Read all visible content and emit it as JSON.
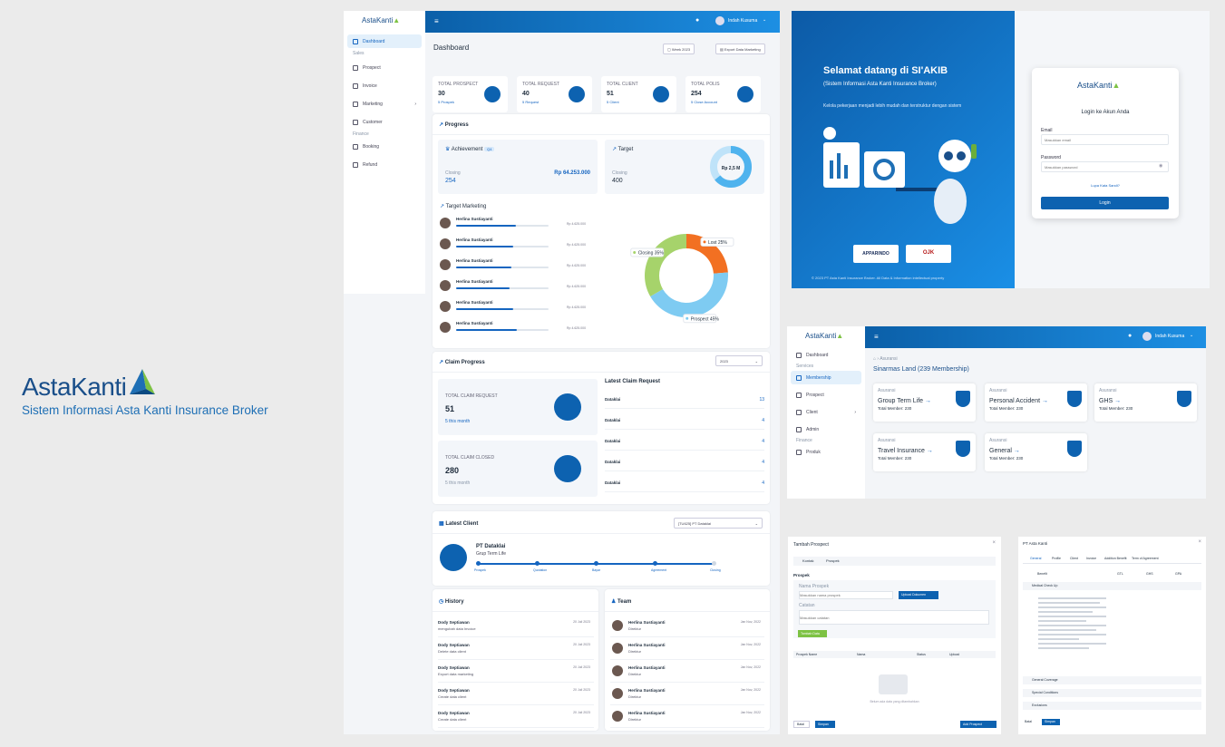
{
  "brand": {
    "name": "AstaKanti",
    "subtitle": "Sistem Informasi Asta Kanti Insurance Broker"
  },
  "dashboard": {
    "logo": "AstaKanti",
    "user": "Indah Kusuma",
    "sidebar": {
      "active": "Dashboard",
      "section1": "Sales",
      "items1": [
        "Prospect",
        "Invoice",
        "Marketing",
        "Customer"
      ],
      "section2": "Finance",
      "items2": [
        "Booking",
        "Refund"
      ]
    },
    "title": "Dashboard",
    "filter_btn": "Week 2023",
    "export_btn": "Export Data Marketing",
    "stats": [
      {
        "label": "TOTAL PROSPECT",
        "value": "30",
        "sub": "5 Prospek"
      },
      {
        "label": "TOTAL REQUEST",
        "value": "40",
        "sub": "5 Request"
      },
      {
        "label": "TOTAL CLIENT",
        "value": "51",
        "sub": "5 Client"
      },
      {
        "label": "TOTAL POLIS",
        "value": "254",
        "sub": "5 Close Account"
      }
    ],
    "progress": {
      "title": "Progress",
      "achievement": {
        "label": "Achievement",
        "badge": "Q4",
        "closing_label": "Closing",
        "closing": "254",
        "amount": "Rp 64.253.000"
      },
      "target": {
        "label": "Target",
        "closing_label": "Closing",
        "closing": "400",
        "donut_label": "Rp 2,5 M",
        "fraction": 0.64
      },
      "marketing_title": "Target Marketing",
      "marketing": [
        {
          "name": "Herlina Sustiayanti",
          "pct": 0.65,
          "amount": "Rp 4.625.000"
        },
        {
          "name": "Herlina Sustiayanti",
          "pct": 0.62,
          "amount": "Rp 4.625.000"
        },
        {
          "name": "Herlina Sustiayanti",
          "pct": 0.6,
          "amount": "Rp 4.625.000"
        },
        {
          "name": "Herlina Sustiayanti",
          "pct": 0.58,
          "amount": "Rp 4.625.000"
        },
        {
          "name": "Herlina Sustiayanti",
          "pct": 0.62,
          "amount": "Rp 4.625.000"
        },
        {
          "name": "Herlina Sustiayanti",
          "pct": 0.66,
          "amount": "Rp 4.625.000"
        }
      ],
      "donut": [
        {
          "label": "Lost 25%",
          "value": 25,
          "color": "#f27022"
        },
        {
          "label": "Prospect 45%",
          "value": 45,
          "color": "#7ecbf2"
        },
        {
          "label": "Closing 35%",
          "value": 35,
          "color": "#a6d36b"
        }
      ]
    },
    "claim": {
      "title": "Claim Progress",
      "year": "2023",
      "request_label": "TOTAL CLAIM REQUEST",
      "request_value": "51",
      "request_sub": "5 this month",
      "closed_label": "TOTAL CLAIM CLOSED",
      "closed_value": "280",
      "closed_sub": "5 this month",
      "latest_title": "Latest Claim Request",
      "latest": [
        {
          "name": "Dataklai",
          "value": "13"
        },
        {
          "name": "Dataklai",
          "value": "4"
        },
        {
          "name": "Dataklai",
          "value": "4"
        },
        {
          "name": "Dataklai",
          "value": "4"
        },
        {
          "name": "Dataklai",
          "value": "4"
        }
      ]
    },
    "latest_client": {
      "title": "Latest Client",
      "filter": "[TU625] PT Dataklai",
      "client": "PT Dataklai",
      "product": "Grup Term Life",
      "steps": [
        "Prospek",
        "Quotation",
        "Bayar",
        "Agreement",
        "Closing"
      ]
    },
    "history": {
      "title": "History",
      "items": [
        {
          "name": "Dody Septiawan",
          "desc": "mengubah data Invoice",
          "date": "20 Juli 2023"
        },
        {
          "name": "Dody Septiawan",
          "desc": "Delete data client",
          "date": "20 Juli 2023"
        },
        {
          "name": "Dody Septiawan",
          "desc": "Export data marketing",
          "date": "20 Juli 2023"
        },
        {
          "name": "Dody Septiawan",
          "desc": "Create data client",
          "date": "20 Juli 2023"
        },
        {
          "name": "Dody Septiawan",
          "desc": "Create data client",
          "date": "20 Juli 2023"
        }
      ]
    },
    "team": {
      "title": "Team",
      "items": [
        {
          "name": "Herlina Sustiayanti",
          "role": "Direktur",
          "date": "Jan Nov, 2022"
        },
        {
          "name": "Herlina Sustiayanti",
          "role": "Direktur",
          "date": "Jan Nov, 2022"
        },
        {
          "name": "Herlina Sustiayanti",
          "role": "Direktur",
          "date": "Jan Nov, 2022"
        },
        {
          "name": "Herlina Sustiayanti",
          "role": "Direktur",
          "date": "Jan Nov, 2022"
        },
        {
          "name": "Herlina Sustiayanti",
          "role": "Direktur",
          "date": "Jan Nov, 2022"
        }
      ]
    }
  },
  "login": {
    "welcome": "Selamat datang di SI'AKIB",
    "subtitle": "(Sistem Informasi Asta Kanti Insurance Broker)",
    "desc": "Kelola pekerjaan menjadi lebih mudah dan terstruktur dengan sistem",
    "partner1": "APPARINDO",
    "partner2": "OJK",
    "footer": "© 2023 PT Asta Kanti Insurance Broker. All Data & Information intellectual property",
    "form_title": "Login ke Akun Anda",
    "logo": "AstaKanti",
    "email_label": "Email",
    "email_placeholder": "Masukkan email",
    "password_label": "Password",
    "password_placeholder": "Masukkan password",
    "forgot": "Lupa Kata Sandi?",
    "button": "Login"
  },
  "membership": {
    "logo": "AstaKanti",
    "user": "Indah Kusuma",
    "breadcrumb": "Asuransi",
    "title": "Sinarmas Land (239 Membership)",
    "sidebar": {
      "items": [
        "Dashboard",
        "Membership",
        "Prospect",
        "Client",
        "Admin",
        "Produk"
      ],
      "section1": "Services",
      "section2": "Finance",
      "active": "Membership"
    },
    "cards": [
      {
        "label": "Asuransi",
        "name": "Group Term Life",
        "total": "Total Member: 230"
      },
      {
        "label": "Asuransi",
        "name": "Personal Accident",
        "total": "Total Member: 230"
      },
      {
        "label": "Asuransi",
        "name": "GHS",
        "total": "Total Member: 230"
      },
      {
        "label": "Asuransi",
        "name": "Travel Insurance",
        "total": "Total Member: 230"
      },
      {
        "label": "Asuransi",
        "name": "General",
        "total": "Total Member: 230"
      }
    ]
  },
  "upload_modal": {
    "title": "Tambah Prospect",
    "tabs": [
      "Kontak",
      "Prospek"
    ],
    "section": "Prospek",
    "field1_label": "Nama Prospek",
    "field1_placeholder": "Masukkan nama prospek",
    "upload_btn": "Upload Dokumen",
    "field2_label": "Catatan",
    "field2_placeholder": "Masukkan catatan",
    "add_btn": "Tambah Data",
    "columns": [
      "Prospek Name",
      "Nama",
      "Status",
      "Upload"
    ],
    "empty": "Belum ada data yang ditambahkan",
    "cancel": "Batal",
    "save": "Simpan",
    "submit": "Add Prospect"
  },
  "detail_modal": {
    "title": "PT Asta Kanti",
    "tabs": [
      "General",
      "Profile",
      "Client",
      "Invoice",
      "Addition Benefit",
      "Term of Agreement"
    ],
    "cols": [
      "Benefit",
      "GTL",
      "GHS",
      "GPA"
    ],
    "row_title": "Medical Check Up",
    "sections": [
      "General Coverage",
      "Special Conditions",
      "Exclusions"
    ],
    "cancel": "Batal",
    "save": "Simpan"
  }
}
